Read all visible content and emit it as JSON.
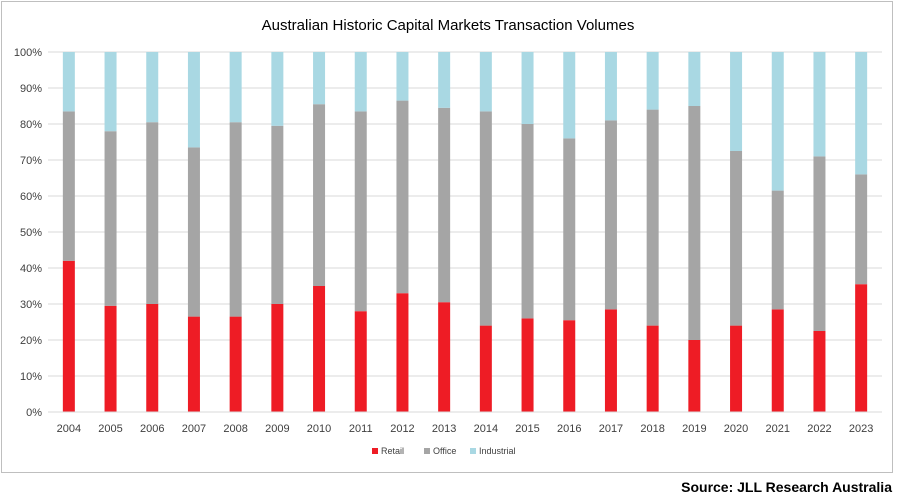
{
  "chart_data": {
    "type": "bar",
    "stacked": true,
    "title": "Australian Historic Capital Markets Transaction Volumes",
    "xlabel": "",
    "ylabel": "",
    "ylim": [
      0,
      100
    ],
    "yticks": [
      "0%",
      "10%",
      "20%",
      "30%",
      "40%",
      "50%",
      "60%",
      "70%",
      "80%",
      "90%",
      "100%"
    ],
    "categories": [
      "2004",
      "2005",
      "2006",
      "2007",
      "2008",
      "2009",
      "2010",
      "2011",
      "2012",
      "2013",
      "2014",
      "2015",
      "2016",
      "2017",
      "2018",
      "2019",
      "2020",
      "2021",
      "2022",
      "2023"
    ],
    "series": [
      {
        "name": "Retail",
        "color": "#ee1c25",
        "values": [
          42,
          29.5,
          30,
          26.5,
          26.5,
          30,
          35,
          28,
          33,
          30.5,
          24,
          26,
          25.5,
          28.5,
          24,
          20,
          24,
          28.5,
          22.5,
          35.5
        ]
      },
      {
        "name": "Office",
        "color": "#a5a5a5",
        "values": [
          41.5,
          48.5,
          50.5,
          47,
          54,
          49.5,
          50.5,
          55.5,
          53.5,
          54,
          59.5,
          54,
          50.5,
          52.5,
          60,
          65,
          48.5,
          33,
          48.5,
          30.5
        ]
      },
      {
        "name": "Industrial",
        "color": "#a9d8e3",
        "values": [
          16.5,
          22,
          19.5,
          26.5,
          19.5,
          20.5,
          14.5,
          16.5,
          13.5,
          15.5,
          16.5,
          20,
          24,
          19,
          16,
          15,
          27.5,
          38.5,
          29,
          34
        ]
      }
    ],
    "legend": "bottom",
    "grid": true
  },
  "source": "Source: JLL Research Australia"
}
